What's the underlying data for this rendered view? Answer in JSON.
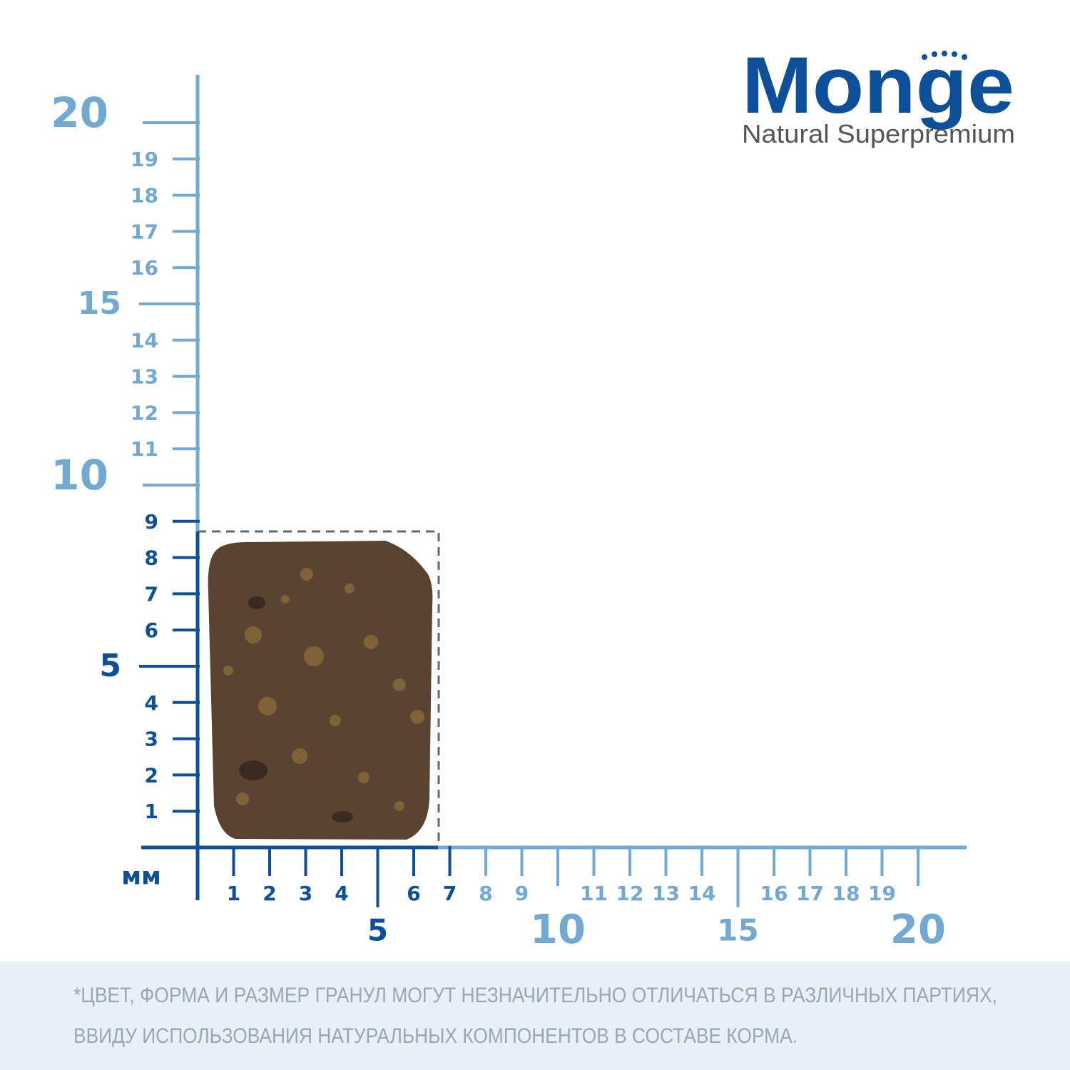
{
  "logo": {
    "brand": "Monge",
    "tagline": "Natural Superpremium"
  },
  "ruler": {
    "unit": "мм",
    "y_major": [
      5,
      10,
      15,
      20
    ],
    "y_minor": [
      1,
      2,
      3,
      4,
      6,
      7,
      8,
      9,
      11,
      12,
      13,
      14,
      16,
      17,
      18,
      19
    ],
    "x_major": [
      5,
      10,
      15,
      20
    ],
    "x_minor": [
      1,
      2,
      3,
      4,
      6,
      7,
      8,
      9,
      11,
      12,
      13,
      14,
      16,
      17,
      18,
      19
    ]
  },
  "footnote": [
    "*ЦВЕТ, ФОРМА И РАЗМЕР ГРАНУЛ МОГУТ НЕЗНАЧИТЕЛЬНО ОТЛИЧАТЬСЯ В РАЗЛИЧНЫХ ПАРТИЯХ,",
    "ВВИДУ ИСПОЛЬЗОВАНИЯ НАТУРАЛЬНЫХ КОМПОНЕНТОВ В СОСТАВЕ КОРМА."
  ]
}
